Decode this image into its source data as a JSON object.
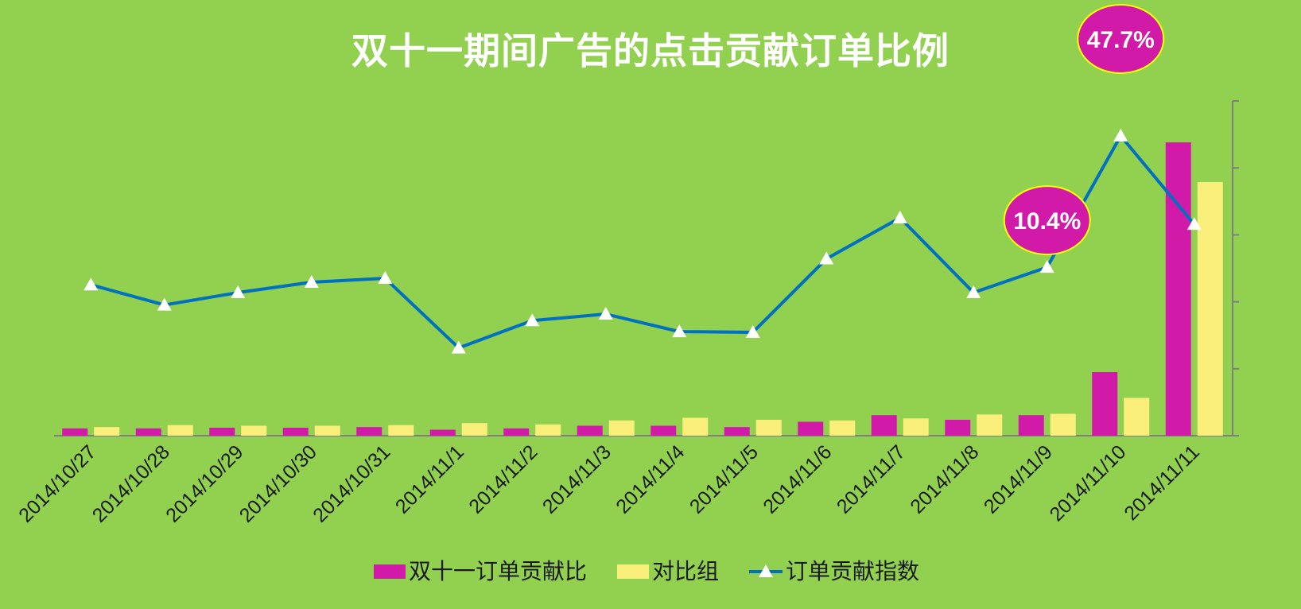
{
  "chart_data": {
    "type": "bar",
    "title": "双十一期间广告的点击贡献订单比例",
    "categories": [
      "2014/10/27",
      "2014/10/28",
      "2014/10/29",
      "2014/10/30",
      "2014/10/31",
      "2014/11/1",
      "2014/11/2",
      "2014/11/3",
      "2014/11/4",
      "2014/11/5",
      "2014/11/6",
      "2014/11/7",
      "2014/11/8",
      "2014/11/9",
      "2014/11/10",
      "2014/11/11"
    ],
    "bar_max": 0.55,
    "line_max": 0.5,
    "series": [
      {
        "name": "双十一订单贡献比",
        "type": "bar",
        "color": "#d21aa8",
        "values": [
          0.011,
          0.011,
          0.012,
          0.012,
          0.013,
          0.009,
          0.011,
          0.015,
          0.015,
          0.013,
          0.021,
          0.031,
          0.024,
          0.031,
          0.096,
          0.443
        ]
      },
      {
        "name": "对比组",
        "type": "bar",
        "color": "#fbef7c",
        "values": [
          0.013,
          0.016,
          0.015,
          0.015,
          0.016,
          0.019,
          0.017,
          0.023,
          0.027,
          0.024,
          0.023,
          0.026,
          0.032,
          0.033,
          0.057,
          0.383
        ]
      },
      {
        "name": "订单贡献指数",
        "type": "line",
        "color": "#0070c0",
        "marker": "triangle",
        "values": [
          0.232,
          0.201,
          0.22,
          0.236,
          0.242,
          0.135,
          0.177,
          0.187,
          0.16,
          0.159,
          0.272,
          0.335,
          0.22,
          0.259,
          0.461,
          0.325
        ]
      }
    ],
    "annotations": [
      {
        "text": "10.4%",
        "category_index": 13,
        "level": 0.16
      },
      {
        "text": "47.7%",
        "category_index": 14,
        "level": 0.5
      }
    ],
    "legend_position": "bottom"
  }
}
